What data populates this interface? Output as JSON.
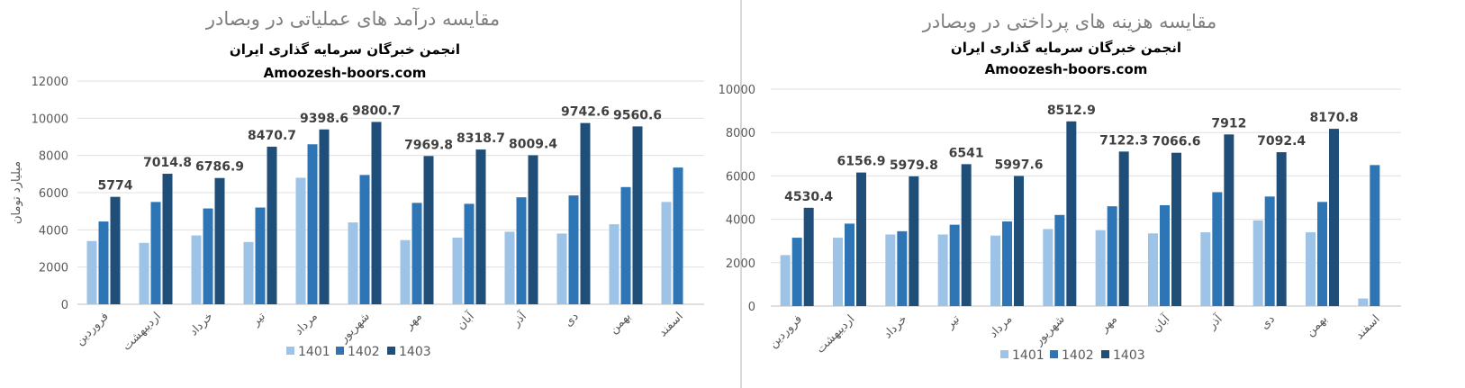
{
  "chart_data": [
    {
      "type": "bar",
      "title": "مقایسه درآمد های عملیاتی در وبصادر",
      "subtitle_lines": [
        "انجمن خبرگان سرمایه گذاری ایران",
        "Amoozesh-boors.com"
      ],
      "xlabel": "",
      "ylabel": "میلیارد تومان",
      "ylim": [
        0,
        12000
      ],
      "yticks": [
        0,
        2000,
        4000,
        6000,
        8000,
        10000,
        12000
      ],
      "grid": true,
      "legend_position": "bottom",
      "categories": [
        "فروردین",
        "اردیبهشت",
        "خرداد",
        "تیر",
        "مرداد",
        "شهریور",
        "مهر",
        "آبان",
        "آذر",
        "دی",
        "بهمن",
        "اسفند"
      ],
      "series": [
        {
          "name": "1401",
          "color": "#9dc3e6",
          "values": [
            3400,
            3300,
            3700,
            3350,
            6800,
            4400,
            3450,
            3580,
            3900,
            3800,
            4300,
            5500
          ],
          "labels": []
        },
        {
          "name": "1402",
          "color": "#2e75b6",
          "values": [
            4450,
            5500,
            5150,
            5200,
            8600,
            6950,
            5450,
            5400,
            5750,
            5850,
            6300,
            7350
          ],
          "labels": []
        },
        {
          "name": "1403",
          "color": "#1f4e79",
          "values": [
            5774,
            7014.8,
            6786.9,
            8470.7,
            9398.6,
            9800.7,
            7969.8,
            8318.7,
            8009.4,
            9742.6,
            9560.6,
            null
          ],
          "labels": [
            "5774",
            "7014.8",
            "6786.9",
            "8470.7",
            "9398.6",
            "9800.7",
            "7969.8",
            "8318.7",
            "8009.4",
            "9742.6",
            "9560.6",
            ""
          ]
        }
      ]
    },
    {
      "type": "bar",
      "title": "مقایسه هزینه های پرداختی در وبصادر",
      "subtitle_lines": [
        "انجمن خبرگان سرمایه گذاری ایران",
        "Amoozesh-boors.com"
      ],
      "xlabel": "",
      "ylabel": "",
      "ylim": [
        0,
        10000
      ],
      "yticks": [
        0,
        2000,
        4000,
        6000,
        8000,
        10000
      ],
      "grid": true,
      "legend_position": "bottom",
      "categories": [
        "فروردین",
        "اردیبهشت",
        "خرداد",
        "تیر",
        "مرداد",
        "شهریور",
        "مهر",
        "آبان",
        "آذر",
        "دی",
        "بهمن",
        "اسفند"
      ],
      "series": [
        {
          "name": "1401",
          "color": "#9dc3e6",
          "values": [
            2350,
            3150,
            3300,
            3300,
            3250,
            3550,
            3500,
            3350,
            3400,
            3950,
            3400,
            350
          ],
          "labels": []
        },
        {
          "name": "1402",
          "color": "#2e75b6",
          "values": [
            3150,
            3800,
            3450,
            3750,
            3900,
            4200,
            4600,
            4650,
            5250,
            5050,
            4800,
            6500
          ],
          "labels": []
        },
        {
          "name": "1403",
          "color": "#1f4e79",
          "values": [
            4530.4,
            6156.9,
            5979.8,
            6541,
            5997.6,
            8512.9,
            7122.3,
            7066.6,
            7912,
            7092.4,
            8170.8,
            null
          ],
          "labels": [
            "4530.4",
            "6156.9",
            "5979.8",
            "6541",
            "5997.6",
            "8512.9",
            "7122.3",
            "7066.6",
            "7912",
            "7092.4",
            "8170.8",
            ""
          ]
        }
      ]
    }
  ]
}
